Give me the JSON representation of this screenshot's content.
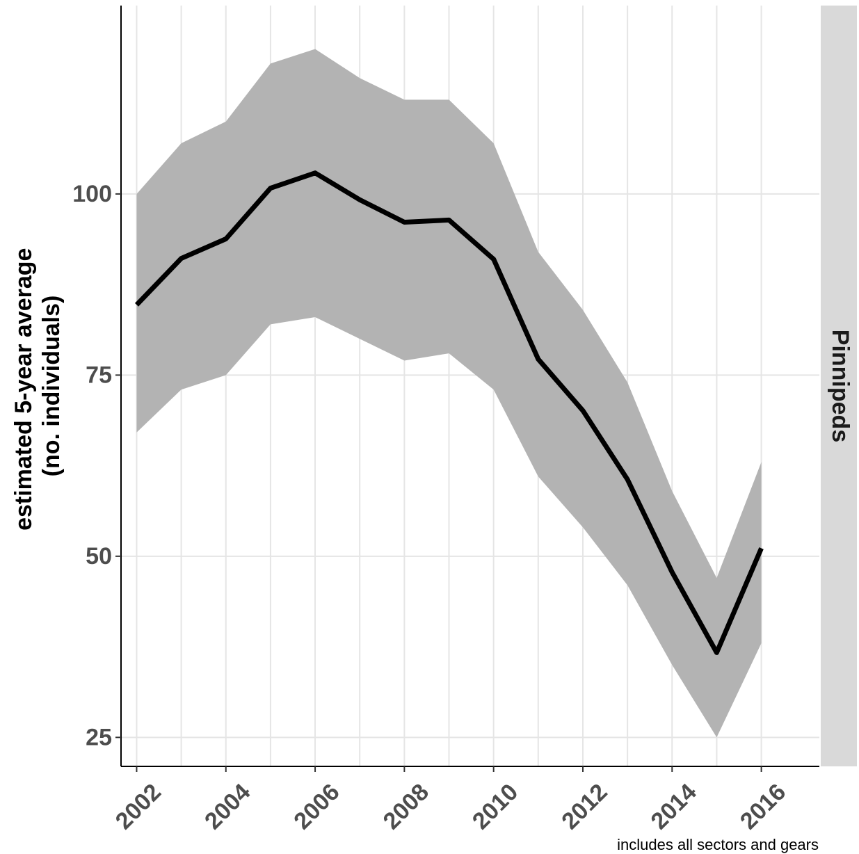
{
  "chart_data": {
    "type": "line",
    "title": "",
    "xlabel": "",
    "ylabel_lines": [
      "estimated 5-year average",
      "(no. individuals)"
    ],
    "facet_label": "Pinnipeds",
    "caption": "includes all sectors and gears",
    "x": [
      2002,
      2003,
      2004,
      2005,
      2006,
      2007,
      2008,
      2009,
      2010,
      2011,
      2012,
      2013,
      2014,
      2015,
      2016
    ],
    "series": [
      {
        "values": [
          84.7,
          91.1,
          93.8,
          100.8,
          102.9,
          99.2,
          96.1,
          96.4,
          91.0,
          77.2,
          70.1,
          60.6,
          47.8,
          36.7,
          51.1
        ],
        "lower": [
          67.1,
          73.0,
          75.0,
          82.0,
          83.0,
          80.0,
          77.0,
          78.0,
          73.0,
          61.0,
          54.0,
          46.0,
          35.0,
          25.0,
          38.0
        ],
        "upper": [
          100.0,
          107.0,
          110.0,
          118.0,
          120.0,
          116.0,
          113.0,
          113.0,
          107.0,
          92.0,
          84.0,
          74.0,
          59.0,
          47.0,
          63.0
        ]
      }
    ],
    "x_ticks": [
      "2002",
      "2004",
      "2006",
      "2008",
      "2010",
      "2012",
      "2014",
      "2016"
    ],
    "y_ticks": [
      "25",
      "50",
      "75",
      "100"
    ],
    "xlim": [
      2001.65,
      2017.3
    ],
    "ylim": [
      21.0,
      126.0
    ],
    "grid": true,
    "line_color": "#000000",
    "band_color": "#b3b3b3",
    "grid_color": "#e5e5e5",
    "strip_color": "#d9d9d9"
  }
}
